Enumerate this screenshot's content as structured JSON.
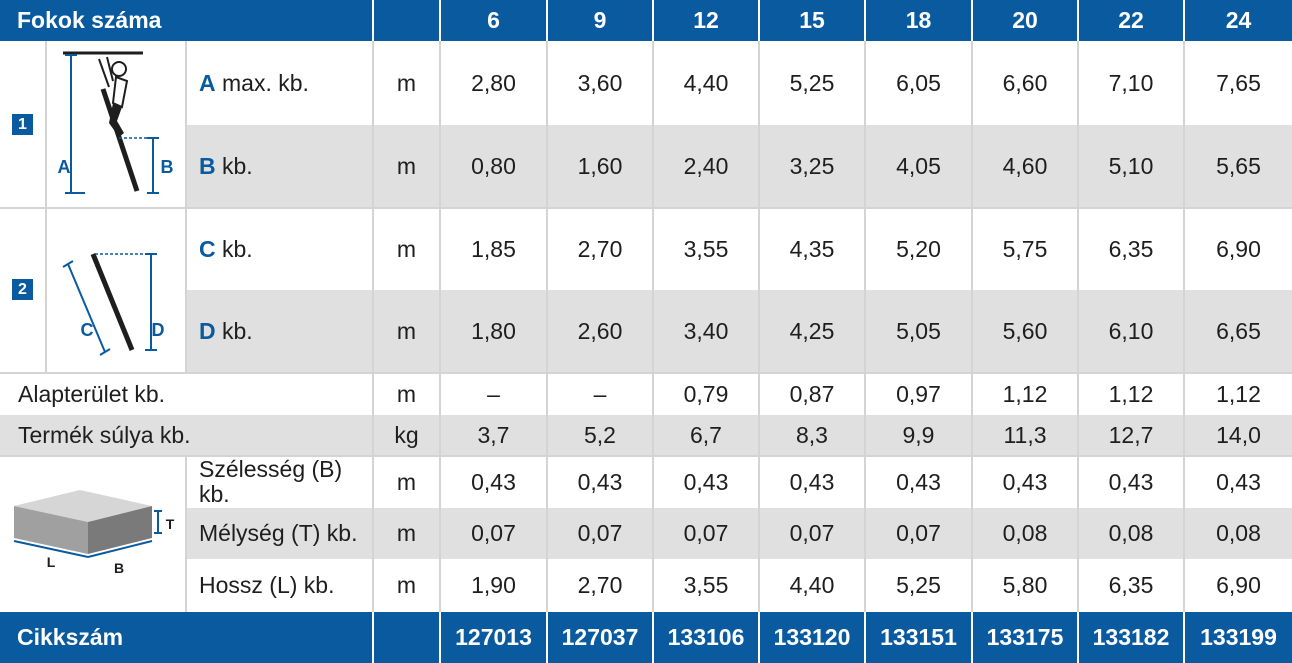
{
  "header": {
    "title": "Fokok száma",
    "columns": [
      "6",
      "9",
      "12",
      "15",
      "18",
      "20",
      "22",
      "24"
    ]
  },
  "groups": [
    {
      "badge": "1",
      "figure_labels": [
        "A",
        "B"
      ],
      "rows": [
        {
          "letter": "A",
          "label": "max. kb.",
          "unit": "m",
          "values": [
            "2,80",
            "3,60",
            "4,40",
            "5,25",
            "6,05",
            "6,60",
            "7,10",
            "7,65"
          ]
        },
        {
          "letter": "B",
          "label": "kb.",
          "unit": "m",
          "values": [
            "0,80",
            "1,60",
            "2,40",
            "3,25",
            "4,05",
            "4,60",
            "5,10",
            "5,65"
          ]
        }
      ]
    },
    {
      "badge": "2",
      "figure_labels": [
        "C",
        "D"
      ],
      "rows": [
        {
          "letter": "C",
          "label": "kb.",
          "unit": "m",
          "values": [
            "1,85",
            "2,70",
            "3,55",
            "4,35",
            "5,20",
            "5,75",
            "6,35",
            "6,90"
          ]
        },
        {
          "letter": "D",
          "label": "kb.",
          "unit": "m",
          "values": [
            "1,80",
            "2,60",
            "3,40",
            "4,25",
            "5,05",
            "5,60",
            "6,10",
            "6,65"
          ]
        }
      ]
    }
  ],
  "simple_rows": [
    {
      "label": "Alapterület kb.",
      "unit": "m",
      "values": [
        "–",
        "–",
        "0,79",
        "0,87",
        "0,97",
        "1,12",
        "1,12",
        "1,12"
      ]
    },
    {
      "label": "Termék súlya kb.",
      "unit": "kg",
      "values": [
        "3,7",
        "5,2",
        "6,7",
        "8,3",
        "9,9",
        "11,3",
        "12,7",
        "14,0"
      ]
    }
  ],
  "package": {
    "figure_labels": [
      "T",
      "L",
      "B"
    ],
    "rows": [
      {
        "label": "Szélesség (B) kb.",
        "unit": "m",
        "values": [
          "0,43",
          "0,43",
          "0,43",
          "0,43",
          "0,43",
          "0,43",
          "0,43",
          "0,43"
        ]
      },
      {
        "label": "Mélység (T) kb.",
        "unit": "m",
        "values": [
          "0,07",
          "0,07",
          "0,07",
          "0,07",
          "0,07",
          "0,08",
          "0,08",
          "0,08"
        ]
      },
      {
        "label": "Hossz (L) kb.",
        "unit": "m",
        "values": [
          "1,90",
          "2,70",
          "3,55",
          "4,40",
          "5,25",
          "5,80",
          "6,35",
          "6,90"
        ]
      }
    ]
  },
  "footer": {
    "label": "Cikkszám",
    "values": [
      "127013",
      "127037",
      "133106",
      "133120",
      "133151",
      "133175",
      "133182",
      "133199"
    ]
  },
  "colors": {
    "brand": "#0a5aa0",
    "stripe": "#e0e0e0",
    "grid": "#d4d4d4"
  }
}
